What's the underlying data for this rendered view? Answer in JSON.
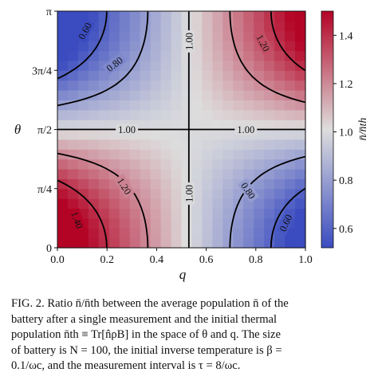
{
  "chart_data": {
    "type": "heatmap",
    "title": "",
    "xlabel": "q",
    "ylabel": "θ",
    "colorbar_label": "n̄/n̄th",
    "xlim": [
      0.0,
      1.0
    ],
    "ylim": [
      0,
      3.1416
    ],
    "x_ticks": [
      "0.0",
      "0.2",
      "0.4",
      "0.6",
      "0.8",
      "1.0"
    ],
    "y_ticks": [
      "0",
      "π/4",
      "π/2",
      "3π/4",
      "π"
    ],
    "colorbar_ticks": [
      "0.6",
      "0.8",
      "1.0",
      "1.2",
      "1.4"
    ],
    "colorbar_range": [
      0.52,
      1.5
    ],
    "colormap": [
      "#3b4cc0",
      "#dddddd",
      "#b40426"
    ],
    "contour_levels": [
      {
        "level": 0.6,
        "label": "0.60"
      },
      {
        "level": 0.8,
        "label": "0.80"
      },
      {
        "level": 1.0,
        "label": "1.00"
      },
      {
        "level": 1.2,
        "label": "1.20"
      },
      {
        "level": 1.4,
        "label": "1.40"
      }
    ],
    "grid": false,
    "x_crossover": 0.53
  },
  "caption": {
    "lines": [
      "FIG. 2. Ratio n̄/n̄th between the average population n̄ of the",
      "battery after a single measurement and the initial thermal",
      "population n̄th ≡ Tr[n̂ρB] in the space of θ and q. The size",
      "of battery is N = 100, the initial inverse temperature is β =",
      "0.1/ωc, and the measurement interval is τ = 8/ωc."
    ]
  }
}
